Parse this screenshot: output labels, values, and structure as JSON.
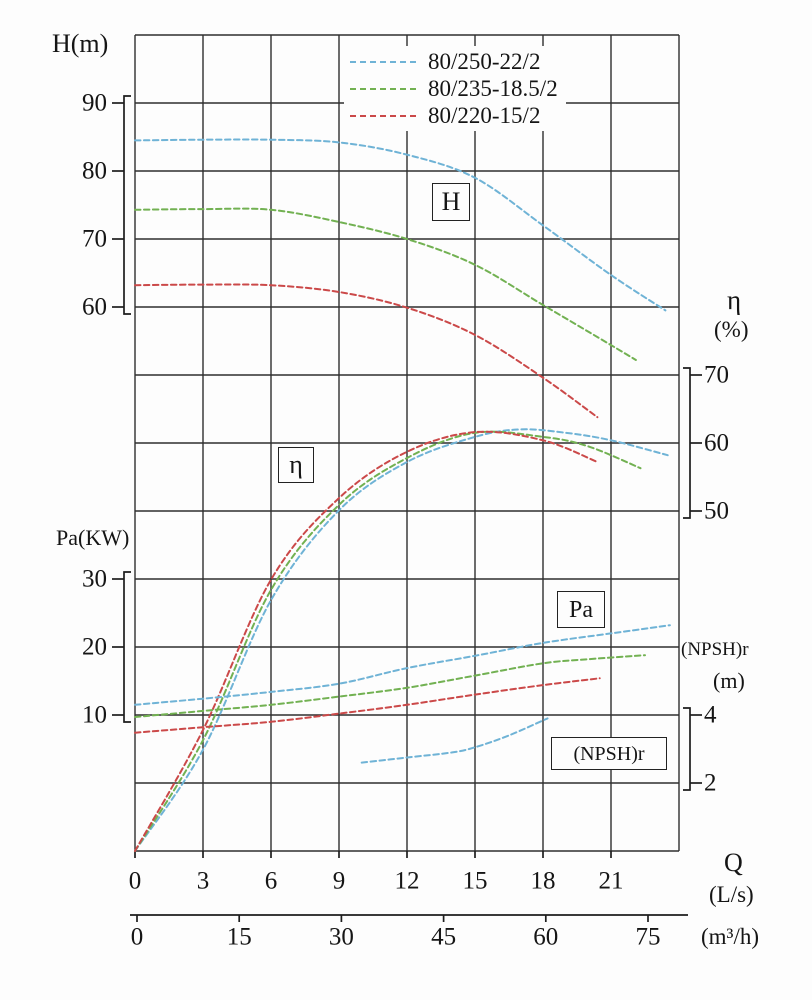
{
  "page": {
    "background": "#fdfdfd"
  },
  "title_labels": {
    "h_axis": "H(m)",
    "pa_axis": "Pa(KW)",
    "eta_axis": "η",
    "eta_unit": "(%)",
    "npsh_axis": "(NPSH)r",
    "npsh_unit": "(m)",
    "q_axis": "Q",
    "q_unit_ls": "(L/s)",
    "q_unit_m3h": "(m³/h)"
  },
  "curve_labels": {
    "h": "H",
    "eta": "η",
    "pa": "Pa",
    "npsh": "(NPSH)r"
  },
  "legend": {
    "items": [
      {
        "label": "80/250-22/2",
        "color": "#6fb3d6"
      },
      {
        "label": "80/235-18.5/2",
        "color": "#72b152"
      },
      {
        "label": "80/220-15/2",
        "color": "#cb4949"
      }
    ]
  },
  "chart_data": {
    "type": "line",
    "legend_position": "top-right inside plot",
    "grid": true,
    "x_axis": {
      "label": "Q",
      "primary_unit": "L/s",
      "primary_ticks": [
        0,
        3,
        6,
        9,
        12,
        15,
        18,
        21
      ],
      "primary_range": [
        0,
        24
      ],
      "secondary_unit": "m³/h",
      "secondary_ticks": [
        0,
        15,
        30,
        45,
        60,
        75
      ]
    },
    "y_axes": [
      {
        "id": "H",
        "label": "H(m)",
        "side": "left",
        "ticks": [
          90,
          80,
          70,
          60
        ]
      },
      {
        "id": "eta",
        "label": "η(%)",
        "side": "right",
        "ticks": [
          70,
          60,
          50
        ]
      },
      {
        "id": "Pa",
        "label": "Pa(KW)",
        "side": "left",
        "ticks": [
          30,
          20,
          10
        ]
      },
      {
        "id": "NPSH",
        "label": "(NPSH)r(m)",
        "side": "right",
        "ticks": [
          4,
          2
        ]
      }
    ],
    "series": [
      {
        "name": "80/250-22/2",
        "quantity": "H",
        "unit": "m",
        "color": "#6fb3d6",
        "points": [
          [
            0,
            84.5
          ],
          [
            3,
            84.6
          ],
          [
            6,
            84.6
          ],
          [
            9,
            84.2
          ],
          [
            12,
            82.4
          ],
          [
            15,
            79
          ],
          [
            18,
            72
          ],
          [
            21,
            64.7
          ],
          [
            23.4,
            59.5
          ]
        ]
      },
      {
        "name": "80/235-18.5/2",
        "quantity": "H",
        "unit": "m",
        "color": "#72b152",
        "points": [
          [
            0,
            74.3
          ],
          [
            3,
            74.4
          ],
          [
            6,
            74.3
          ],
          [
            9,
            72.5
          ],
          [
            12,
            70
          ],
          [
            15,
            66.2
          ],
          [
            18,
            60.3
          ],
          [
            21,
            54.4
          ],
          [
            22.1,
            52.2
          ]
        ]
      },
      {
        "name": "80/220-15/2",
        "quantity": "H",
        "unit": "m",
        "color": "#cb4949",
        "points": [
          [
            0,
            63.2
          ],
          [
            3,
            63.3
          ],
          [
            6,
            63.2
          ],
          [
            9,
            62.2
          ],
          [
            12,
            59.9
          ],
          [
            15,
            55.9
          ],
          [
            18,
            49.6
          ],
          [
            20.4,
            43.8
          ]
        ]
      },
      {
        "name": "80/250-22/2",
        "quantity": "eta",
        "unit": "%",
        "color": "#6fb3d6",
        "points": [
          [
            0,
            0
          ],
          [
            3,
            14.9
          ],
          [
            6,
            36.9
          ],
          [
            9,
            50.1
          ],
          [
            12,
            57.2
          ],
          [
            15,
            60.9
          ],
          [
            17,
            62
          ],
          [
            19,
            61.5
          ],
          [
            21,
            60.4
          ],
          [
            23.5,
            58.2
          ]
        ]
      },
      {
        "name": "80/235-18.5/2",
        "quantity": "eta",
        "unit": "%",
        "color": "#72b152",
        "points": [
          [
            0,
            0
          ],
          [
            3,
            16.3
          ],
          [
            6,
            38.4
          ],
          [
            9,
            50.9
          ],
          [
            12,
            57.8
          ],
          [
            15,
            61.5
          ],
          [
            18,
            60.9
          ],
          [
            20,
            59.5
          ],
          [
            22.3,
            56.3
          ]
        ]
      },
      {
        "name": "80/220-15/2",
        "quantity": "eta",
        "unit": "%",
        "color": "#cb4949",
        "points": [
          [
            0,
            0
          ],
          [
            3,
            17.8
          ],
          [
            6,
            39.9
          ],
          [
            9,
            51.9
          ],
          [
            12,
            58.7
          ],
          [
            15,
            61.6
          ],
          [
            18,
            60.4
          ],
          [
            20.4,
            57.2
          ]
        ]
      },
      {
        "name": "80/250-22/2",
        "quantity": "Pa",
        "unit": "KW",
        "color": "#6fb3d6",
        "points": [
          [
            0,
            11.5
          ],
          [
            3,
            12.4
          ],
          [
            6,
            13.4
          ],
          [
            9,
            14.6
          ],
          [
            12,
            16.9
          ],
          [
            15,
            18.7
          ],
          [
            18,
            20.6
          ],
          [
            21,
            22
          ],
          [
            23.6,
            23.2
          ]
        ]
      },
      {
        "name": "80/235-18.5/2",
        "quantity": "Pa",
        "unit": "KW",
        "color": "#72b152",
        "points": [
          [
            0,
            9.7
          ],
          [
            3,
            10.6
          ],
          [
            6,
            11.5
          ],
          [
            9,
            12.7
          ],
          [
            12,
            14
          ],
          [
            15,
            15.8
          ],
          [
            18,
            17.6
          ],
          [
            20,
            18.2
          ],
          [
            22.5,
            18.8
          ]
        ]
      },
      {
        "name": "80/220-15/2",
        "quantity": "Pa",
        "unit": "KW",
        "color": "#cb4949",
        "points": [
          [
            0,
            7.4
          ],
          [
            3,
            8.2
          ],
          [
            6,
            9
          ],
          [
            9,
            10.2
          ],
          [
            12,
            11.5
          ],
          [
            15,
            13
          ],
          [
            18,
            14.4
          ],
          [
            20.5,
            15.4
          ]
        ]
      },
      {
        "name": "80/250-22/2",
        "quantity": "NPSH",
        "unit": "m",
        "color": "#6fb3d6",
        "points": [
          [
            10,
            2.6
          ],
          [
            12,
            2.75
          ],
          [
            14,
            2.9
          ],
          [
            15,
            3.05
          ],
          [
            16.5,
            3.4
          ],
          [
            18.2,
            3.9
          ]
        ]
      }
    ]
  }
}
